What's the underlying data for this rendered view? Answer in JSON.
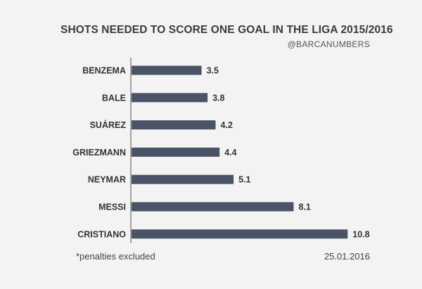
{
  "chart_data": {
    "type": "bar",
    "orientation": "horizontal",
    "title": "SHOTS NEEDED TO SCORE ONE GOAL IN THE LIGA 2015/2016",
    "subtitle": "@BARCANUMBERS",
    "categories": [
      "BENZEMA",
      "BALE",
      "SUÁREZ",
      "GRIEZMANN",
      "NEYMAR",
      "MESSI",
      "CRISTIANO"
    ],
    "values": [
      3.5,
      3.8,
      4.2,
      4.4,
      5.1,
      8.1,
      10.8
    ],
    "value_labels": [
      "3.5",
      "3.8",
      "4.2",
      "4.4",
      "5.1",
      "8.1",
      "10.8"
    ],
    "xlim": [
      0,
      11.95
    ],
    "bar_color": "#4a5466",
    "grid": false,
    "legend": "none"
  },
  "footnote": "*penalties excluded",
  "date": "25.01.2016"
}
